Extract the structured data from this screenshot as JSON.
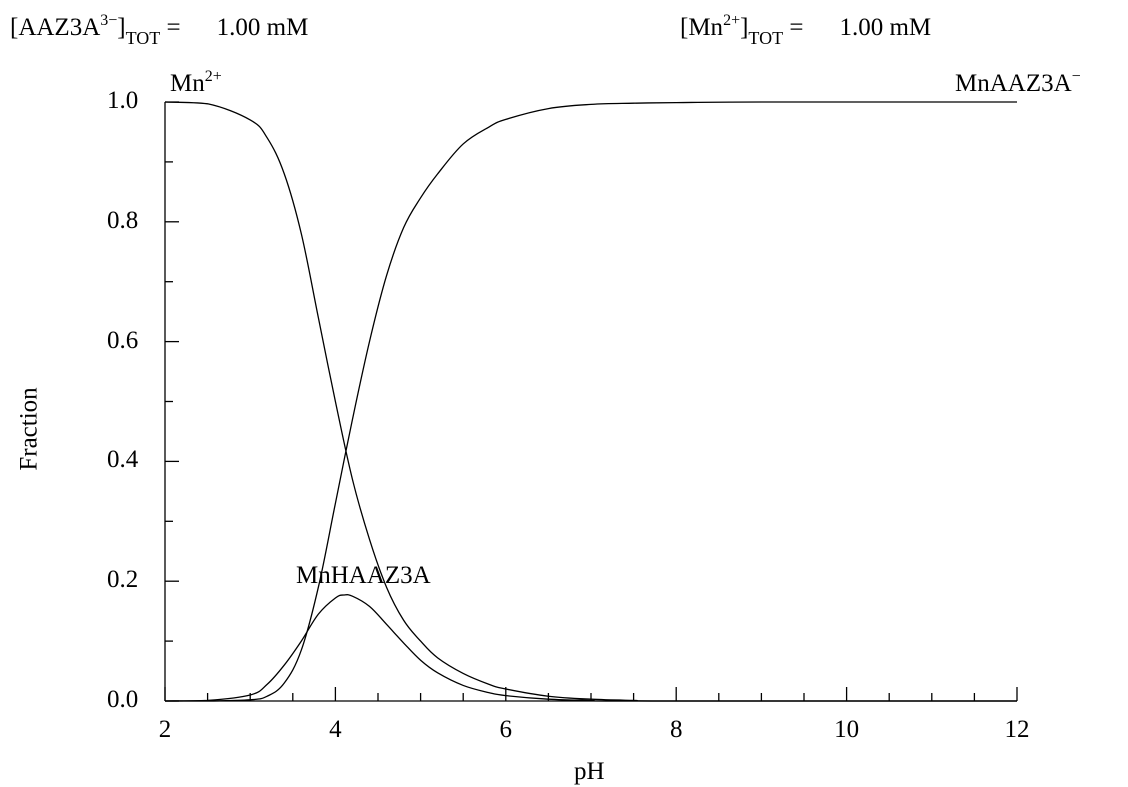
{
  "header": {
    "left": {
      "base": "[AAZ3A",
      "sup": "3−",
      "close": "]",
      "sub": "TOT",
      "eq": " =",
      "value": "1.00 mM"
    },
    "right": {
      "base": "[Mn",
      "sup": "2+",
      "close": "]",
      "sub": "TOT",
      "eq": " =",
      "value": "1.00 mM"
    }
  },
  "chart_data": {
    "type": "line",
    "title": "",
    "xlabel": "pH",
    "ylabel": "Fraction",
    "xlim": [
      2,
      12
    ],
    "ylim": [
      0,
      1
    ],
    "xticks": [
      2,
      4,
      6,
      8,
      10,
      12
    ],
    "xtick_labels": [
      "2",
      "4",
      "6",
      "8",
      "10",
      "12"
    ],
    "xminor_step": 0.5,
    "yticks": [
      0.0,
      0.2,
      0.4,
      0.6,
      0.8,
      1.0
    ],
    "ytick_labels": [
      "0.0",
      "0.2",
      "0.4",
      "0.6",
      "0.8",
      "1.0"
    ],
    "yminor_step": 0.1,
    "grid": false,
    "series": [
      {
        "name": "Mn2+",
        "x": [
          2.0,
          2.5,
          3.0,
          3.2,
          3.4,
          3.6,
          3.8,
          4.0,
          4.2,
          4.4,
          4.6,
          4.8,
          5.0,
          5.2,
          5.5,
          5.8,
          6.0,
          6.5,
          7.0,
          7.5,
          8.0,
          12.0
        ],
        "y": [
          1.0,
          0.997,
          0.97,
          0.94,
          0.88,
          0.78,
          0.64,
          0.5,
          0.37,
          0.27,
          0.19,
          0.135,
          0.1,
          0.072,
          0.046,
          0.028,
          0.02,
          0.008,
          0.003,
          0.001,
          0.0,
          0.0
        ]
      },
      {
        "name": "MnHAAZ3A",
        "x": [
          2.0,
          2.5,
          3.0,
          3.2,
          3.4,
          3.6,
          3.8,
          4.0,
          4.1,
          4.2,
          4.4,
          4.6,
          4.8,
          5.0,
          5.2,
          5.5,
          5.8,
          6.0,
          6.5,
          7.0,
          7.5,
          12.0
        ],
        "y": [
          0.0,
          0.001,
          0.01,
          0.028,
          0.06,
          0.1,
          0.145,
          0.172,
          0.177,
          0.175,
          0.158,
          0.128,
          0.097,
          0.068,
          0.047,
          0.026,
          0.014,
          0.009,
          0.003,
          0.001,
          0.0,
          0.0
        ]
      },
      {
        "name": "MnAAZ3A−",
        "x": [
          2.0,
          2.5,
          3.0,
          3.2,
          3.4,
          3.6,
          3.8,
          4.0,
          4.2,
          4.4,
          4.6,
          4.8,
          5.0,
          5.2,
          5.5,
          5.8,
          6.0,
          6.5,
          7.0,
          7.5,
          8.0,
          9.0,
          12.0
        ],
        "y": [
          0.0,
          0.0,
          0.002,
          0.008,
          0.03,
          0.085,
          0.19,
          0.33,
          0.47,
          0.6,
          0.71,
          0.79,
          0.84,
          0.88,
          0.93,
          0.958,
          0.971,
          0.989,
          0.996,
          0.998,
          0.999,
          1.0,
          1.0
        ]
      }
    ],
    "labels": [
      {
        "series": "Mn2+",
        "base": "Mn",
        "sup": "2+"
      },
      {
        "series": "MnHAAZ3A",
        "base": "MnHAAZ3A",
        "sup": ""
      },
      {
        "series": "MnAAZ3A−",
        "base": "MnAAZ3A",
        "sup": "−"
      }
    ]
  }
}
